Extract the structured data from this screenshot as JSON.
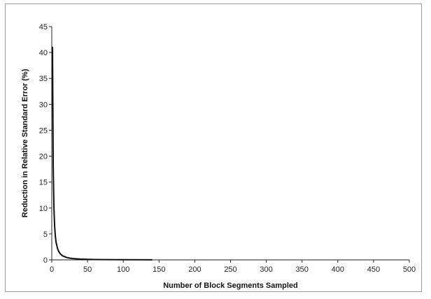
{
  "chart_data": {
    "type": "line",
    "title": "",
    "xlabel": "Number of Block Segments Sampled",
    "ylabel": "Reduction in Relative Standard Error (%)",
    "xlim": [
      0,
      500
    ],
    "ylim": [
      0,
      45
    ],
    "x_ticks": [
      0,
      50,
      100,
      150,
      200,
      250,
      300,
      350,
      400,
      450,
      500
    ],
    "y_ticks": [
      0,
      5,
      10,
      15,
      20,
      25,
      30,
      35,
      40,
      45
    ],
    "grid": false,
    "legend": "none",
    "line_color": "#111111",
    "series": [
      {
        "x": [
          1,
          2,
          3,
          4,
          5,
          6,
          8,
          10,
          12,
          15,
          20,
          25,
          30,
          40,
          50,
          60,
          75,
          100,
          140
        ],
        "values": [
          41,
          18,
          10,
          6.5,
          4.6,
          3.4,
          2.2,
          1.55,
          1.15,
          0.8,
          0.5,
          0.34,
          0.25,
          0.15,
          0.1,
          0.07,
          0.05,
          0.03,
          0.02
        ]
      }
    ]
  }
}
